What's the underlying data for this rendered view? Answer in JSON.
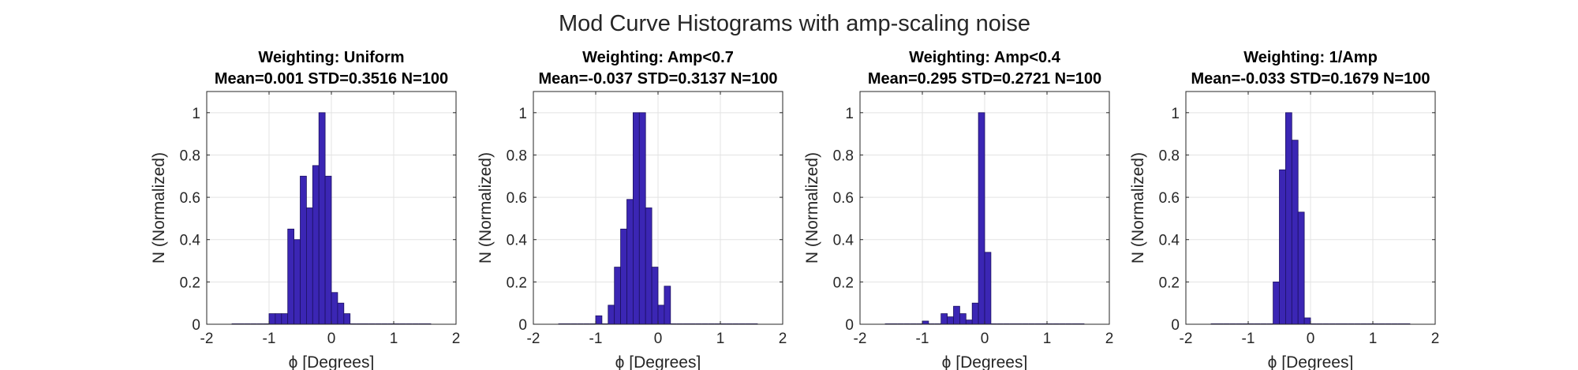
{
  "figure_title": "Mod Curve Histograms with amp-scaling noise",
  "colors": {
    "bar_fill": "#3b26b4",
    "bar_edge": "#1b1060",
    "grid": "#e3e3e3",
    "axis": "#262626",
    "background": "#ffffff"
  },
  "chart_data": [
    {
      "type": "bar",
      "title": "Weighting: Uniform",
      "subtitle": "Mean=0.001 STD=0.3516 N=100",
      "xlabel": "ϕ [Degrees]",
      "ylabel": "N (Normalized)",
      "xlim": [
        -2,
        2
      ],
      "ylim": [
        0,
        1.1
      ],
      "xticks": [
        "-2",
        "-1",
        "0",
        "1",
        "2"
      ],
      "yticks": [
        "0",
        "0.2",
        "0.4",
        "0.6",
        "0.8",
        "1"
      ],
      "grid": true,
      "bin_edges_start": -1.6,
      "bin_width": 0.1,
      "values": [
        0,
        0,
        0,
        0,
        0,
        0,
        0.05,
        0.05,
        0.05,
        0.45,
        0.4,
        0.7,
        0.55,
        0.75,
        1.0,
        0.7,
        0.15,
        0.1,
        0.05,
        0,
        0,
        0,
        0,
        0,
        0,
        0,
        0,
        0,
        0,
        0,
        0,
        0
      ]
    },
    {
      "type": "bar",
      "title": "Weighting: Amp<0.7",
      "subtitle": "Mean=-0.037 STD=0.3137 N=100",
      "xlabel": "ϕ [Degrees]",
      "ylabel": "N (Normalized)",
      "xlim": [
        -2,
        2
      ],
      "ylim": [
        0,
        1.1
      ],
      "xticks": [
        "-2",
        "-1",
        "0",
        "1",
        "2"
      ],
      "yticks": [
        "0",
        "0.2",
        "0.4",
        "0.6",
        "0.8",
        "1"
      ],
      "grid": true,
      "bin_edges_start": -1.6,
      "bin_width": 0.1,
      "values": [
        0,
        0,
        0,
        0,
        0,
        0,
        0.04,
        0,
        0.09,
        0.27,
        0.45,
        0.59,
        1.0,
        1.0,
        0.55,
        0.27,
        0.09,
        0.18,
        0,
        0,
        0,
        0,
        0,
        0,
        0,
        0,
        0,
        0,
        0,
        0,
        0,
        0
      ]
    },
    {
      "type": "bar",
      "title": "Weighting: Amp<0.4",
      "subtitle": "Mean=0.295 STD=0.2721 N=100",
      "xlabel": "ϕ [Degrees]",
      "ylabel": "N (Normalized)",
      "xlim": [
        -2,
        2
      ],
      "ylim": [
        0,
        1.1
      ],
      "xticks": [
        "-2",
        "-1",
        "0",
        "1",
        "2"
      ],
      "yticks": [
        "0",
        "0.2",
        "0.4",
        "0.6",
        "0.8",
        "1"
      ],
      "grid": true,
      "bin_edges_start": -1.6,
      "bin_width": 0.1,
      "values": [
        0,
        0,
        0,
        0,
        0,
        0,
        0.015,
        0,
        0,
        0.05,
        0.035,
        0.085,
        0.05,
        0.02,
        0.1,
        1.0,
        0.34,
        0,
        0,
        0,
        0,
        0,
        0,
        0,
        0,
        0,
        0,
        0,
        0,
        0,
        0,
        0
      ]
    },
    {
      "type": "bar",
      "title": "Weighting: 1/Amp",
      "subtitle": "Mean=-0.033 STD=0.1679 N=100",
      "xlabel": "ϕ [Degrees]",
      "ylabel": "N (Normalized)",
      "xlim": [
        -2,
        2
      ],
      "ylim": [
        0,
        1.1
      ],
      "xticks": [
        "-2",
        "-1",
        "0",
        "1",
        "2"
      ],
      "yticks": [
        "0",
        "0.2",
        "0.4",
        "0.6",
        "0.8",
        "1"
      ],
      "grid": true,
      "bin_edges_start": -1.6,
      "bin_width": 0.1,
      "values": [
        0,
        0,
        0,
        0,
        0,
        0,
        0,
        0,
        0,
        0,
        0.2,
        0.73,
        1.0,
        0.87,
        0.53,
        0.03,
        0,
        0,
        0,
        0,
        0,
        0,
        0,
        0,
        0,
        0,
        0,
        0,
        0,
        0,
        0,
        0
      ]
    }
  ]
}
